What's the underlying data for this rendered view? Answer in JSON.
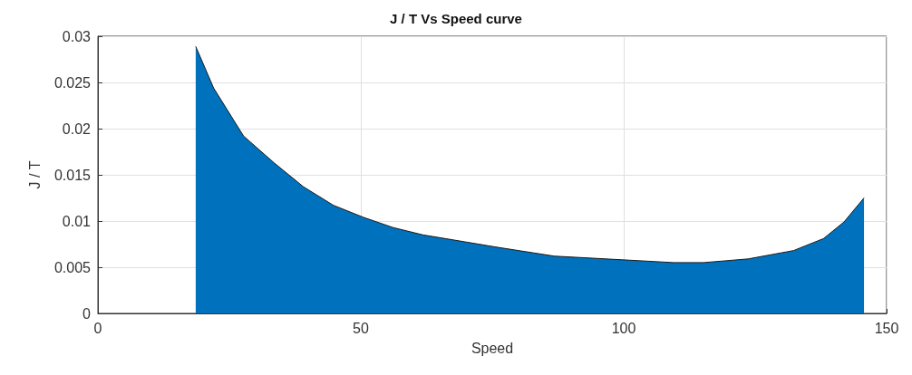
{
  "chart_data": {
    "type": "area",
    "title": "J / T Vs Speed curve",
    "xlabel": "Speed",
    "ylabel": "J / T",
    "xlim": [
      0,
      150
    ],
    "xticks": [
      0,
      50,
      100,
      150
    ],
    "ylim": [
      0,
      0.03
    ],
    "yticks": [
      0,
      0.005,
      0.01,
      0.015,
      0.02,
      0.025,
      0.03
    ],
    "grid": true,
    "series": [
      {
        "color": "#0072bd",
        "x": [
          18.6,
          22.0,
          27.7,
          33.5,
          39.1,
          44.8,
          50.5,
          56.1,
          61.8,
          70.3,
          75.5,
          86.8,
          99.8,
          109.5,
          115.2,
          123.7,
          132.3,
          138.0,
          141.9,
          145.7
        ],
        "values": [
          0.0289,
          0.0244,
          0.0192,
          0.0163,
          0.0137,
          0.0117,
          0.0104,
          0.0093,
          0.0085,
          0.0077,
          0.0072,
          0.0062,
          0.0058,
          0.0055,
          0.0055,
          0.0059,
          0.0068,
          0.0081,
          0.0099,
          0.0125
        ]
      }
    ]
  }
}
